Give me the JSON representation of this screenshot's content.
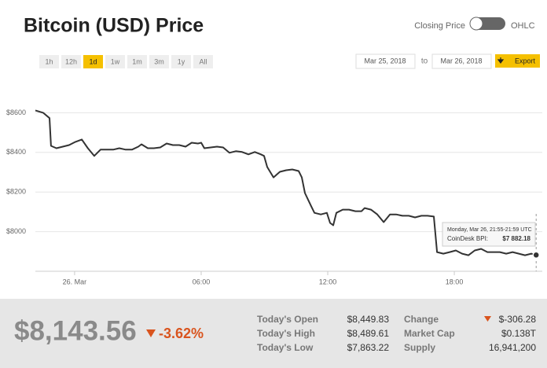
{
  "header": {
    "title": "Bitcoin (USD) Price",
    "toggle_left": "Closing Price",
    "toggle_right": "OHLC"
  },
  "controls": {
    "ranges": [
      "1h",
      "12h",
      "1d",
      "1w",
      "1m",
      "3m",
      "1y",
      "All"
    ],
    "date_from": "Mar 25, 2018",
    "date_sep": "to",
    "date_to": "Mar 26, 2018",
    "export": "Export"
  },
  "chart_data": {
    "type": "line",
    "color": "#333333",
    "grid": true,
    "x": [
      -1.86,
      -1.49,
      -1.19,
      -1.12,
      -0.86,
      -0.56,
      -0.26,
      0.04,
      0.34,
      0.63,
      0.93,
      1.23,
      1.53,
      1.83,
      2.12,
      2.42,
      2.72,
      3.02,
      3.17,
      3.47,
      3.76,
      4.06,
      4.36,
      4.66,
      4.96,
      5.26,
      5.55,
      5.85,
      6.0,
      6.15,
      6.45,
      6.75,
      7.04,
      7.34,
      7.64,
      7.94,
      8.24,
      8.54,
      8.83,
      8.98,
      9.13,
      9.43,
      9.73,
      10.03,
      10.32,
      10.62,
      10.77,
      10.92,
      11.22,
      11.37,
      11.67,
      11.96,
      12.11,
      12.26,
      12.41,
      12.71,
      13.01,
      13.31,
      13.6,
      13.75,
      14.05,
      14.35,
      14.65,
      14.95,
      15.24,
      15.54,
      15.84,
      16.14,
      16.44,
      16.73,
      17.03,
      17.18,
      17.48,
      17.78,
      18.07,
      18.37,
      18.67,
      18.97,
      19.27,
      19.57,
      19.86,
      20.16,
      20.46,
      20.76,
      21.06,
      21.35,
      21.65,
      21.88
    ],
    "values": [
      8612,
      8600,
      8573,
      8433,
      8421,
      8429,
      8437,
      8453,
      8465,
      8421,
      8382,
      8414,
      8414,
      8414,
      8421,
      8414,
      8414,
      8429,
      8441,
      8421,
      8421,
      8425,
      8445,
      8437,
      8437,
      8429,
      8449,
      8445,
      8449,
      8421,
      8425,
      8429,
      8425,
      8398,
      8406,
      8402,
      8390,
      8402,
      8390,
      8382,
      8326,
      8274,
      8302,
      8310,
      8314,
      8306,
      8274,
      8195,
      8127,
      8095,
      8087,
      8095,
      8044,
      8032,
      8095,
      8111,
      8111,
      8103,
      8103,
      8119,
      8111,
      8087,
      8048,
      8087,
      8087,
      8080,
      8080,
      8072,
      8080,
      8080,
      8076,
      7897,
      7889,
      7897,
      7905,
      7889,
      7881,
      7905,
      7913,
      7897,
      7897,
      7897,
      7889,
      7897,
      7889,
      7881,
      7889,
      7882.18
    ],
    "xlim": [
      -1.86,
      22.17
    ],
    "xticks": [
      {
        "value": 0,
        "label": "26. Mar"
      },
      {
        "value": 6,
        "label": "06:00"
      },
      {
        "value": 12,
        "label": "12:00"
      },
      {
        "value": 18,
        "label": "18:00"
      }
    ],
    "ylim": [
      7800,
      8800
    ],
    "yticks": [
      {
        "value": 8000,
        "label": "$8000"
      },
      {
        "value": 8200,
        "label": "$8200"
      },
      {
        "value": 8400,
        "label": "$8400"
      },
      {
        "value": 8600,
        "label": "$8600"
      }
    ],
    "tooltip": {
      "time": "Monday, Mar 26, 21:55-21:59 UTC",
      "label": "CoinDesk BPI:",
      "value": "$7 882.18"
    }
  },
  "summary": {
    "price": "$8,143.56",
    "change_pct": "-3.62%",
    "stats": [
      [
        "Today's Open",
        "$8,449.83"
      ],
      [
        "Today's High",
        "$8,489.61"
      ],
      [
        "Today's Low",
        "$7,863.22"
      ],
      [
        "Change",
        "$-306.28"
      ],
      [
        "Market Cap",
        "$0.138T"
      ],
      [
        "Supply",
        "16,941,200"
      ]
    ]
  }
}
